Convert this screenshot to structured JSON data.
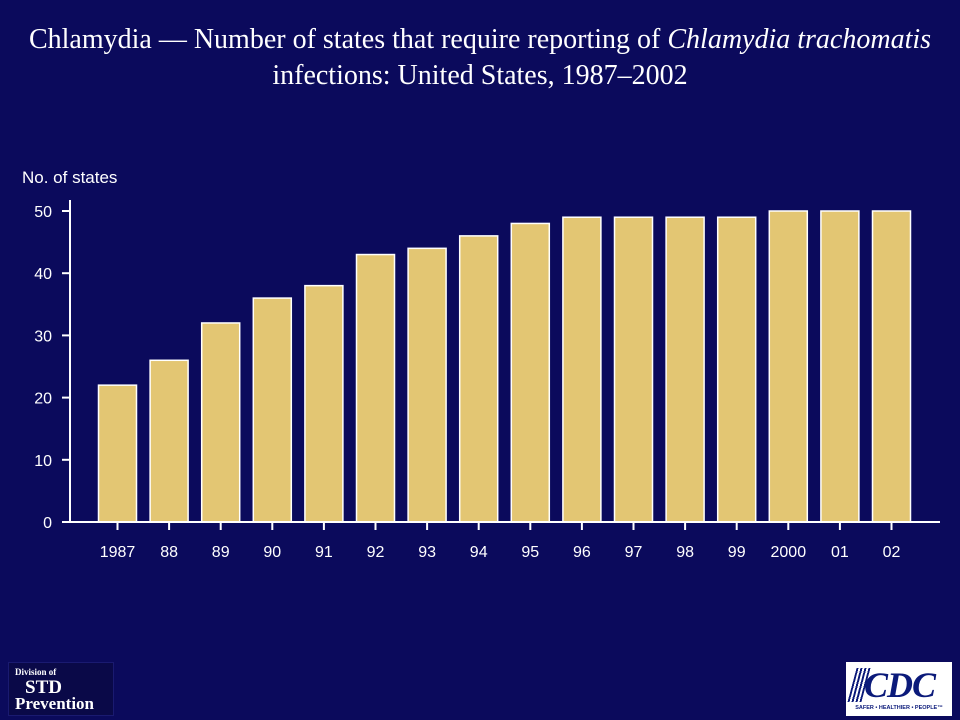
{
  "title": {
    "part1": "Chlamydia — Number of states that require reporting of ",
    "italic1": "Chlamydia trachomatis",
    "part2": " infections: United States, 1987–2002"
  },
  "chart_data": {
    "type": "bar",
    "title": "Chlamydia — Number of states that require reporting of Chlamydia trachomatis infections: United States, 1987–2002",
    "ylabel": "No. of states",
    "xlabel": "",
    "categories": [
      "1987",
      "88",
      "89",
      "90",
      "91",
      "92",
      "93",
      "94",
      "95",
      "96",
      "97",
      "98",
      "99",
      "2000",
      "01",
      "02"
    ],
    "values": [
      22,
      26,
      32,
      36,
      38,
      43,
      44,
      46,
      48,
      49,
      49,
      49,
      49,
      50,
      50,
      50
    ],
    "ylim": [
      0,
      50
    ],
    "yticks": [
      0,
      10,
      20,
      30,
      40,
      50
    ],
    "grid": false,
    "colors": {
      "bar": "#e3c673",
      "bar_edge": "#ffffff",
      "axis": "#ffffff",
      "text": "#ffffff",
      "background": "#0b0a5c"
    }
  },
  "logos": {
    "left": {
      "line1": "Division of",
      "line2": "STD",
      "line3": "Prevention"
    },
    "right": {
      "text": "CDC",
      "tagline": "SAFER • HEALTHIER • PEOPLE™"
    }
  }
}
